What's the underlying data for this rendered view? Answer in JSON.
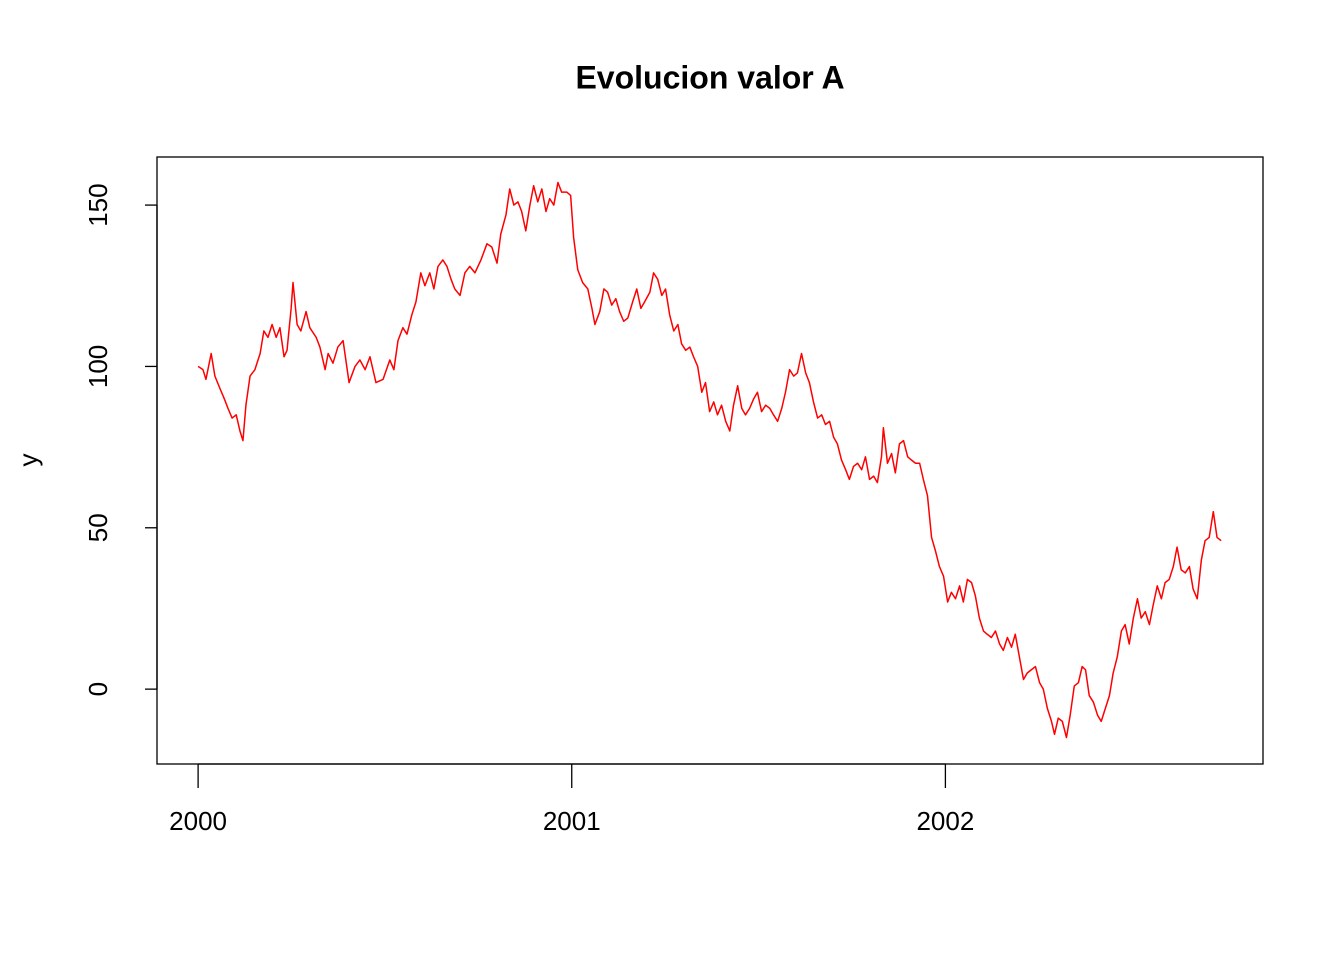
{
  "chart_data": {
    "type": "line",
    "title": "Evolucion valor A",
    "ylabel": "y",
    "x": [
      2000,
      2000.013,
      2000.021,
      2000.035,
      2000.045,
      2000.059,
      2000.07,
      2000.08,
      2000.091,
      2000.102,
      2000.112,
      2000.12,
      2000.128,
      2000.139,
      2000.152,
      2000.166,
      2000.176,
      2000.187,
      2000.198,
      2000.209,
      2000.219,
      2000.23,
      2000.238,
      2000.249,
      2000.254,
      2000.265,
      2000.275,
      2000.289,
      2000.299,
      2000.316,
      2000.326,
      2000.34,
      2000.348,
      2000.361,
      2000.374,
      2000.388,
      2000.404,
      2000.42,
      2000.433,
      2000.447,
      2000.46,
      2000.476,
      2000.495,
      2000.513,
      2000.524,
      2000.535,
      2000.548,
      2000.559,
      2000.572,
      2000.583,
      2000.596,
      2000.607,
      2000.62,
      2000.631,
      2000.642,
      2000.655,
      2000.666,
      2000.677,
      2000.687,
      2000.701,
      2000.714,
      2000.727,
      2000.741,
      2000.757,
      2000.773,
      2000.786,
      2000.8,
      2000.81,
      2000.824,
      2000.834,
      2000.845,
      2000.856,
      2000.866,
      2000.877,
      2000.888,
      2000.898,
      2000.909,
      2000.92,
      2000.931,
      2000.941,
      2000.952,
      2000.963,
      2000.973,
      2000.987,
      2000.997,
      2001.005,
      2001.016,
      2001.029,
      2001.043,
      2001.054,
      2001.062,
      2001.075,
      2001.086,
      2001.096,
      2001.107,
      2001.118,
      2001.128,
      2001.139,
      2001.15,
      2001.163,
      2001.174,
      2001.185,
      2001.195,
      2001.209,
      2001.219,
      2001.23,
      2001.241,
      2001.251,
      2001.262,
      2001.273,
      2001.284,
      2001.294,
      2001.305,
      2001.316,
      2001.326,
      2001.337,
      2001.348,
      2001.358,
      2001.369,
      2001.38,
      2001.39,
      2001.401,
      2001.412,
      2001.423,
      2001.433,
      2001.444,
      2001.455,
      2001.465,
      2001.476,
      2001.487,
      2001.497,
      2001.508,
      2001.519,
      2001.53,
      2001.54,
      2001.551,
      2001.562,
      2001.572,
      2001.583,
      2001.594,
      2001.604,
      2001.615,
      2001.626,
      2001.636,
      2001.647,
      2001.658,
      2001.669,
      2001.679,
      2001.69,
      2001.701,
      2001.711,
      2001.722,
      2001.733,
      2001.743,
      2001.754,
      2001.765,
      2001.776,
      2001.786,
      2001.797,
      2001.808,
      2001.818,
      2001.829,
      2001.834,
      2001.845,
      2001.856,
      2001.866,
      2001.877,
      2001.888,
      2001.899,
      2001.909,
      2001.92,
      2001.931,
      2001.941,
      2001.952,
      2001.963,
      2001.973,
      2001.984,
      2001.995,
      2002.006,
      2002.016,
      2002.027,
      2002.038,
      2002.048,
      2002.059,
      2002.07,
      2002.08,
      2002.091,
      2002.102,
      2002.112,
      2002.123,
      2002.134,
      2002.145,
      2002.155,
      2002.166,
      2002.177,
      2002.187,
      2002.198,
      2002.209,
      2002.219,
      2002.23,
      2002.241,
      2002.252,
      2002.262,
      2002.273,
      2002.284,
      2002.292,
      2002.302,
      2002.313,
      2002.324,
      2002.334,
      2002.345,
      2002.356,
      2002.366,
      2002.375,
      2002.385,
      2002.396,
      2002.407,
      2002.417,
      2002.428,
      2002.439,
      2002.449,
      2002.46,
      2002.471,
      2002.481,
      2002.492,
      2002.503,
      2002.514,
      2002.524,
      2002.535,
      2002.546,
      2002.556,
      2002.567,
      2002.578,
      2002.588,
      2002.599,
      2002.61,
      2002.62,
      2002.631,
      2002.642,
      2002.653,
      2002.663,
      2002.674,
      2002.685,
      2002.695,
      2002.706,
      2002.717,
      2002.727,
      2002.738
    ],
    "series": [
      {
        "color": "#ff0000",
        "values": [
          100,
          99,
          96,
          104,
          97,
          93,
          90,
          87,
          84,
          85,
          80,
          77,
          88,
          97,
          99,
          104,
          111,
          109,
          113,
          109,
          112,
          103,
          105,
          118,
          126,
          113,
          111,
          117,
          112,
          109,
          106,
          99,
          104,
          101,
          106,
          108,
          95,
          100,
          102,
          99,
          103,
          95,
          96,
          102,
          99,
          108,
          112,
          110,
          116,
          120,
          129,
          125,
          129,
          124,
          131,
          133,
          131,
          127,
          124,
          122,
          129,
          131,
          129,
          133,
          138,
          137,
          132,
          141,
          147,
          155,
          150,
          151,
          148,
          142,
          150,
          156,
          151,
          155,
          148,
          152,
          150,
          157,
          154,
          154,
          153,
          140,
          130,
          126,
          124,
          118,
          113,
          117,
          124,
          123,
          119,
          121,
          117,
          114,
          115,
          120,
          124,
          118,
          120,
          123,
          129,
          127,
          122,
          124,
          116,
          111,
          113,
          107,
          105,
          106,
          103,
          100,
          92,
          95,
          86,
          89,
          85,
          88,
          83,
          80,
          88,
          94,
          87,
          85,
          87,
          90,
          92,
          86,
          88,
          87,
          85,
          83,
          87,
          92,
          99,
          97,
          98,
          104,
          98,
          95,
          89,
          84,
          85,
          82,
          83,
          78,
          76,
          71,
          68,
          65,
          69,
          70,
          68,
          72,
          65,
          66,
          64,
          72,
          81,
          70,
          73,
          67,
          76,
          77,
          72,
          71,
          70,
          70,
          65,
          60,
          47,
          43,
          38,
          35,
          27,
          30,
          28,
          32,
          27,
          34,
          33,
          29,
          22,
          18,
          17,
          16,
          18,
          14,
          12,
          16,
          13,
          17,
          10,
          3,
          5,
          6,
          7,
          2,
          0,
          -6,
          -10,
          -14,
          -9,
          -10,
          -15,
          -8,
          1,
          2,
          7,
          6,
          -2,
          -4,
          -8,
          -10,
          -6,
          -2,
          5,
          10,
          18,
          20,
          14,
          22,
          28,
          22,
          24,
          20,
          26,
          32,
          28,
          33,
          34,
          38,
          44,
          37,
          36,
          38,
          31,
          28,
          40,
          46,
          47,
          55,
          47,
          46
        ]
      }
    ],
    "xlim": [
      1999.89,
      2002.85
    ],
    "xticks": [
      2000,
      2001,
      2002
    ],
    "ylim": [
      -23.2,
      164.9
    ],
    "yticks": [
      0,
      50,
      100,
      150
    ]
  }
}
